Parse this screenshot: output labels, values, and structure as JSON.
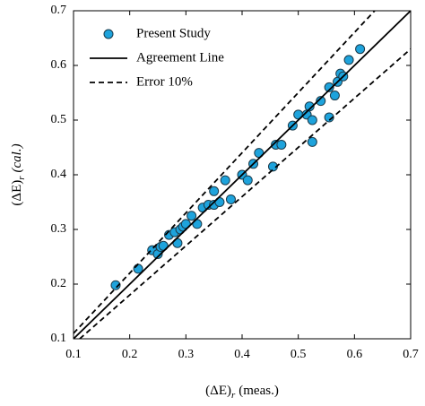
{
  "chart_data": {
    "type": "scatter",
    "xlabel": {
      "main": "(ΔE)",
      "sub": "r",
      "suffix": "(meas.)"
    },
    "ylabel": {
      "main": "(ΔE)",
      "sub": "r",
      "suffix": "(cal.)"
    },
    "xlim": [
      0.1,
      0.7
    ],
    "ylim": [
      0.1,
      0.7
    ],
    "xticks": [
      0.1,
      0.2,
      0.3,
      0.4,
      0.5,
      0.6,
      0.7
    ],
    "yticks": [
      0.1,
      0.2,
      0.3,
      0.4,
      0.5,
      0.6,
      0.7
    ],
    "legend": "upper left",
    "series": [
      {
        "name": "Present Study",
        "color": "#1ea3dc",
        "x": [
          0.175,
          0.215,
          0.24,
          0.25,
          0.255,
          0.26,
          0.27,
          0.28,
          0.285,
          0.29,
          0.295,
          0.3,
          0.31,
          0.32,
          0.33,
          0.34,
          0.35,
          0.35,
          0.36,
          0.37,
          0.38,
          0.4,
          0.41,
          0.42,
          0.43,
          0.455,
          0.46,
          0.47,
          0.49,
          0.5,
          0.515,
          0.52,
          0.525,
          0.525,
          0.54,
          0.555,
          0.555,
          0.565,
          0.57,
          0.575,
          0.58,
          0.59,
          0.61
        ],
        "values": [
          0.198,
          0.228,
          0.262,
          0.255,
          0.268,
          0.27,
          0.29,
          0.295,
          0.275,
          0.3,
          0.305,
          0.31,
          0.325,
          0.31,
          0.34,
          0.345,
          0.37,
          0.345,
          0.35,
          0.39,
          0.355,
          0.4,
          0.39,
          0.42,
          0.44,
          0.415,
          0.455,
          0.455,
          0.49,
          0.51,
          0.51,
          0.525,
          0.46,
          0.5,
          0.535,
          0.505,
          0.56,
          0.545,
          0.57,
          0.585,
          0.58,
          0.61,
          0.63
        ]
      },
      {
        "name": "Agreement Line",
        "color": "#000000",
        "style": "solid",
        "segments": [
          {
            "x": [
              0.1,
              0.7
            ],
            "values": [
              0.1,
              0.7
            ]
          }
        ]
      },
      {
        "name": "Error 10%",
        "color": "#000000",
        "style": "dashed",
        "segments": [
          {
            "x": [
              0.1,
              0.636
            ],
            "values": [
              0.11,
              0.7
            ]
          },
          {
            "x": [
              0.111,
              0.7
            ],
            "values": [
              0.1,
              0.63
            ]
          }
        ]
      }
    ]
  }
}
